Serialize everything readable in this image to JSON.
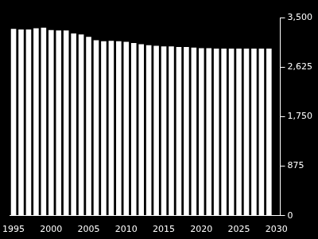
{
  "chart_data": {
    "type": "bar",
    "categories": [
      "1995",
      null,
      null,
      null,
      null,
      "2000",
      null,
      null,
      null,
      null,
      "2005",
      null,
      null,
      null,
      null,
      "2010",
      null,
      null,
      null,
      null,
      "2015",
      null,
      null,
      null,
      null,
      "2020",
      null,
      null,
      null,
      null,
      "2025",
      null,
      null,
      null,
      null,
      "2030"
    ],
    "values": [
      3300,
      3290,
      3290,
      3310,
      3320,
      3280,
      3270,
      3270,
      3220,
      3200,
      3160,
      3100,
      3080,
      3090,
      3080,
      3070,
      3050,
      3030,
      3010,
      3000,
      2990,
      2990,
      2980,
      2980,
      2970,
      2960,
      2960,
      2950,
      2950,
      2950,
      2950,
      2950,
      2950,
      2950,
      2950,
      null
    ],
    "color": "#ffffff",
    "ylim": [
      0,
      3500
    ],
    "yticks": [
      0,
      875,
      1750,
      2625,
      3500
    ],
    "grid": false
  }
}
